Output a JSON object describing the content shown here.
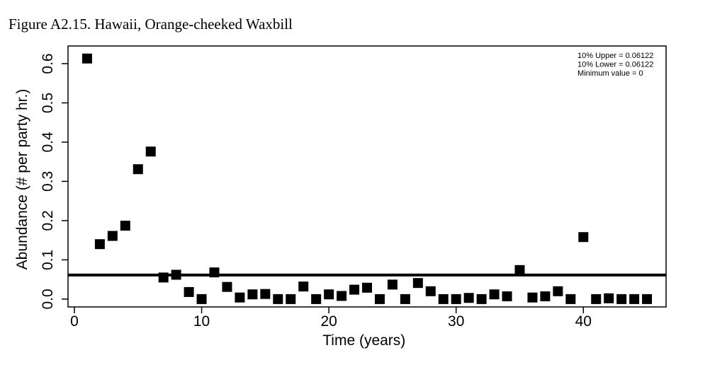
{
  "figure": {
    "caption": "Figure A2.15. Hawaii, Orange-cheeked Waxbill"
  },
  "chart_data": {
    "type": "scatter",
    "title": "",
    "xlabel": "Time (years)",
    "ylabel": "Abundance (# per party hr.)",
    "xlim": [
      -0.5,
      46.5
    ],
    "ylim": [
      -0.02,
      0.645
    ],
    "xticks": [
      0,
      10,
      20,
      30,
      40
    ],
    "yticks": [
      0.0,
      0.1,
      0.2,
      0.3,
      0.4,
      0.5,
      0.6
    ],
    "xtick_labels": [
      "0",
      "10",
      "20",
      "30",
      "40"
    ],
    "ytick_labels": [
      "0.0",
      "0.1",
      "0.2",
      "0.3",
      "0.4",
      "0.5",
      "0.6"
    ],
    "grid": false,
    "legend_position": "top-right",
    "marker": "square",
    "marker_color": "#000000",
    "reference_line": {
      "y": 0.06122,
      "color": "#000000"
    },
    "annotations": [
      "10% Upper = 0.06122",
      "10% Lower = 0.06122",
      "Minimum value = 0"
    ],
    "series": [
      {
        "x": [
          1,
          2,
          3,
          4,
          5,
          6,
          7,
          8,
          9,
          10,
          11,
          12,
          13,
          14,
          15,
          16,
          17,
          18,
          19,
          20,
          21,
          22,
          23,
          24,
          25,
          26,
          27,
          28,
          29,
          30,
          31,
          32,
          33,
          34,
          35,
          36,
          37,
          38,
          39,
          40,
          41,
          42,
          43,
          44,
          45
        ],
        "y": [
          0.613,
          0.14,
          0.161,
          0.187,
          0.331,
          0.376,
          0.055,
          0.062,
          0.018,
          0.0,
          0.068,
          0.031,
          0.004,
          0.012,
          0.013,
          0.0,
          0.0,
          0.032,
          0.0,
          0.012,
          0.008,
          0.024,
          0.029,
          0.0,
          0.037,
          0.0,
          0.041,
          0.02,
          0.0,
          0.0,
          0.003,
          0.0,
          0.012,
          0.007,
          0.074,
          0.004,
          0.007,
          0.02,
          0.0,
          0.158,
          0.0,
          0.002,
          0.0,
          0.0,
          0.0
        ]
      }
    ]
  }
}
